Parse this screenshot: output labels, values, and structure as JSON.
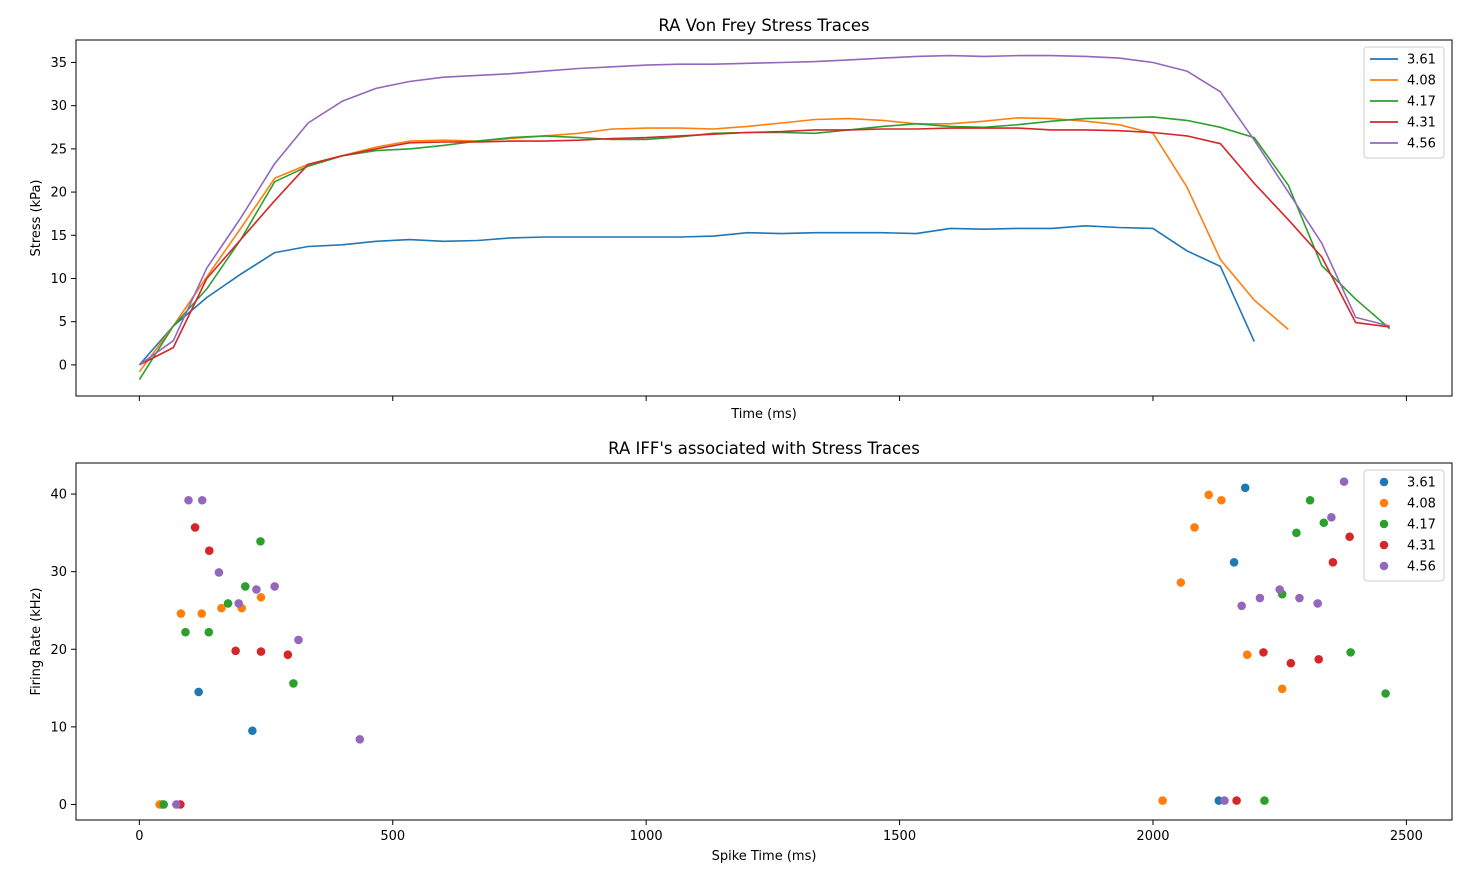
{
  "chart_data": [
    {
      "type": "line",
      "title": "RA Von Frey Stress Traces",
      "xlabel": "Time (ms)",
      "ylabel": "Stress (kPa)",
      "xlim": [
        -125,
        2590
      ],
      "ylim": [
        -3.6,
        37.6
      ],
      "xticks": [
        0,
        500,
        1000,
        1500,
        2000,
        2500
      ],
      "yticks": [
        0,
        5,
        10,
        15,
        20,
        25,
        30,
        35
      ],
      "show_xtick_labels": false,
      "grid": false,
      "legend": "top-right",
      "series": [
        {
          "name": "3.61",
          "color": "#1f77b4",
          "x": [
            0,
            67,
            133,
            200,
            267,
            333,
            400,
            467,
            533,
            600,
            667,
            733,
            800,
            867,
            933,
            1000,
            1067,
            1133,
            1200,
            1267,
            1333,
            1400,
            1467,
            1533,
            1600,
            1667,
            1733,
            1800,
            1867,
            1933,
            2000,
            2067,
            2133,
            2200
          ],
          "y": [
            0,
            4.5,
            7.8,
            10.5,
            13.0,
            13.7,
            13.9,
            14.3,
            14.5,
            14.3,
            14.4,
            14.7,
            14.8,
            14.8,
            14.8,
            14.8,
            14.8,
            14.9,
            15.3,
            15.2,
            15.3,
            15.3,
            15.3,
            15.2,
            15.8,
            15.7,
            15.8,
            15.8,
            16.1,
            15.9,
            15.8,
            13.2,
            11.4,
            2.7
          ]
        },
        {
          "name": "4.08",
          "color": "#ff7f0e",
          "x": [
            0,
            67,
            133,
            200,
            267,
            333,
            400,
            467,
            533,
            600,
            667,
            733,
            800,
            867,
            933,
            1000,
            1067,
            1133,
            1200,
            1267,
            1333,
            1400,
            1467,
            1533,
            1600,
            1667,
            1733,
            1800,
            1867,
            1933,
            2000,
            2067,
            2133,
            2200,
            2267
          ],
          "y": [
            -0.8,
            4.5,
            10.2,
            15.8,
            21.6,
            23.2,
            24.2,
            25.2,
            25.9,
            26.0,
            25.9,
            26.2,
            26.5,
            26.8,
            27.3,
            27.4,
            27.4,
            27.3,
            27.6,
            28.0,
            28.4,
            28.5,
            28.3,
            27.9,
            27.9,
            28.2,
            28.6,
            28.5,
            28.2,
            27.8,
            26.8,
            20.6,
            12.2,
            7.5,
            4.1
          ]
        },
        {
          "name": "4.17",
          "color": "#2ca02c",
          "x": [
            0,
            67,
            133,
            200,
            267,
            333,
            400,
            467,
            533,
            600,
            667,
            733,
            800,
            867,
            933,
            1000,
            1067,
            1133,
            1200,
            1267,
            1333,
            1400,
            1467,
            1533,
            1600,
            1667,
            1733,
            1800,
            1867,
            1933,
            2000,
            2067,
            2133,
            2200,
            2267,
            2333,
            2400,
            2467
          ],
          "y": [
            -1.7,
            4.5,
            8.8,
            14.5,
            21.2,
            23.0,
            24.2,
            24.8,
            25.0,
            25.4,
            25.9,
            26.3,
            26.5,
            26.3,
            26.1,
            26.1,
            26.4,
            26.8,
            26.9,
            26.9,
            26.8,
            27.2,
            27.6,
            27.9,
            27.6,
            27.5,
            27.8,
            28.2,
            28.5,
            28.6,
            28.7,
            28.3,
            27.5,
            26.3,
            20.8,
            11.5,
            7.6,
            4.2
          ]
        },
        {
          "name": "4.31",
          "color": "#d62728",
          "x": [
            0,
            67,
            133,
            200,
            267,
            333,
            400,
            467,
            533,
            600,
            667,
            733,
            800,
            867,
            933,
            1000,
            1067,
            1133,
            1200,
            1267,
            1333,
            1400,
            1467,
            1533,
            1600,
            1667,
            1733,
            1800,
            1867,
            1933,
            2000,
            2067,
            2133,
            2200,
            2267,
            2333,
            2400,
            2467
          ],
          "y": [
            0,
            2.0,
            10.0,
            14.5,
            19.0,
            23.2,
            24.2,
            25.0,
            25.7,
            25.8,
            25.8,
            25.9,
            25.9,
            26.0,
            26.2,
            26.3,
            26.5,
            26.7,
            26.9,
            27.0,
            27.2,
            27.2,
            27.3,
            27.3,
            27.4,
            27.4,
            27.4,
            27.2,
            27.2,
            27.1,
            26.9,
            26.5,
            25.6,
            21.0,
            16.8,
            12.5,
            4.9,
            4.4
          ]
        },
        {
          "name": "4.56",
          "color": "#9467bd",
          "x": [
            0,
            67,
            133,
            200,
            267,
            333,
            400,
            467,
            533,
            600,
            667,
            733,
            800,
            867,
            933,
            1000,
            1067,
            1133,
            1200,
            1267,
            1333,
            1400,
            1467,
            1533,
            1600,
            1667,
            1733,
            1800,
            1867,
            1933,
            2000,
            2067,
            2133,
            2200,
            2267,
            2333,
            2400,
            2467
          ],
          "y": [
            0,
            2.8,
            11.2,
            17.0,
            23.3,
            28.0,
            30.5,
            32.0,
            32.8,
            33.3,
            33.5,
            33.7,
            34.0,
            34.3,
            34.5,
            34.7,
            34.8,
            34.8,
            34.9,
            35.0,
            35.1,
            35.3,
            35.5,
            35.7,
            35.8,
            35.7,
            35.8,
            35.8,
            35.7,
            35.5,
            35.0,
            34.0,
            31.6,
            26.0,
            20.0,
            14.1,
            5.5,
            4.5
          ]
        }
      ]
    },
    {
      "type": "scatter",
      "title": "RA IFF's associated with Stress Traces",
      "xlabel": "Spike Time (ms)",
      "ylabel": "Firing Rate (kHz)",
      "xlim": [
        -125,
        2590
      ],
      "ylim": [
        -2,
        44
      ],
      "xticks": [
        0,
        500,
        1000,
        1500,
        2000,
        2500
      ],
      "yticks": [
        0,
        10,
        20,
        30,
        40
      ],
      "grid": false,
      "legend": "top-right",
      "series": [
        {
          "name": "3.61",
          "color": "#1f77b4",
          "x": [
            44,
            117,
            223,
            2130,
            2160,
            2182
          ],
          "y": [
            0,
            14.5,
            9.5,
            0.5,
            31.2,
            40.8
          ]
        },
        {
          "name": "4.08",
          "color": "#ff7f0e",
          "x": [
            40,
            82,
            123,
            162,
            202,
            240,
            2019,
            2055,
            2082,
            2110,
            2135,
            2186,
            2255
          ],
          "y": [
            0,
            24.6,
            24.6,
            25.3,
            25.3,
            26.7,
            0.5,
            28.6,
            35.7,
            39.9,
            39.2,
            19.3,
            14.9
          ]
        },
        {
          "name": "4.17",
          "color": "#2ca02c",
          "x": [
            48,
            91,
            137,
            175,
            209,
            239,
            304,
            2220,
            2255,
            2283,
            2310,
            2337,
            2390,
            2459
          ],
          "y": [
            0,
            22.2,
            22.2,
            25.9,
            28.1,
            33.9,
            15.6,
            0.5,
            27.1,
            35.0,
            39.2,
            36.3,
            19.6,
            14.3
          ]
        },
        {
          "name": "4.31",
          "color": "#d62728",
          "x": [
            81,
            110,
            138,
            190,
            240,
            293,
            2165,
            2218,
            2272,
            2327,
            2355,
            2388
          ],
          "y": [
            0,
            35.7,
            32.7,
            19.8,
            19.7,
            19.3,
            0.5,
            19.6,
            18.2,
            18.7,
            31.2,
            34.5
          ]
        },
        {
          "name": "4.56",
          "color": "#9467bd",
          "x": [
            73,
            97,
            124,
            157,
            196,
            231,
            267,
            314,
            435,
            2141,
            2175,
            2211,
            2250,
            2289,
            2325,
            2352,
            2377
          ],
          "y": [
            0,
            39.2,
            39.2,
            29.9,
            25.9,
            27.7,
            28.1,
            21.2,
            8.4,
            0.5,
            25.6,
            26.6,
            27.7,
            26.6,
            25.9,
            37.0,
            41.6
          ]
        }
      ]
    }
  ]
}
